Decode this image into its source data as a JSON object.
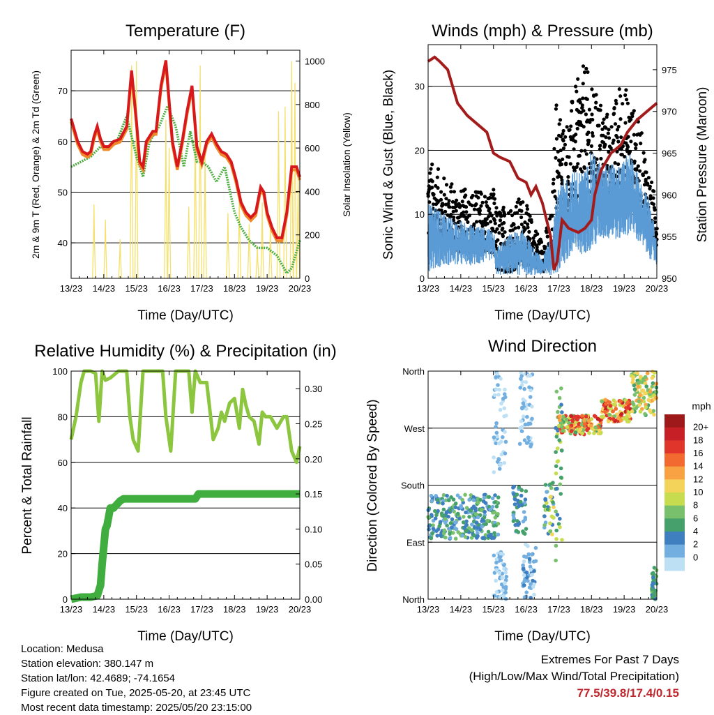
{
  "chart_data": [
    {
      "id": "temperature",
      "type": "line",
      "title": "Temperature (F)",
      "xlabel": "Time (Day/UTC)",
      "ylabel": "2m & 9m T (Red, Orange) & 2m Td (Green)",
      "ylabel_right": "Solar Insolation (Yellow)",
      "x_ticks": [
        "13/23",
        "14/23",
        "15/23",
        "16/23",
        "17/23",
        "18/23",
        "19/23",
        "20/23"
      ],
      "xlim": [
        0,
        7
      ],
      "ylim": [
        33,
        78
      ],
      "y_ticks": [
        40,
        50,
        60,
        70
      ],
      "ylim_right": [
        0,
        1050
      ],
      "y_ticks_right": [
        0,
        200,
        400,
        600,
        800,
        1000
      ],
      "grid": true,
      "colors": {
        "t2m": "#d7191c",
        "t9m": "#f0892b",
        "td": "#4daf3f",
        "solar": "#f4e06b"
      },
      "series": [
        {
          "key": "t2m",
          "x": [
            0,
            0.2,
            0.35,
            0.5,
            0.6,
            0.7,
            0.8,
            0.9,
            1,
            1.15,
            1.3,
            1.5,
            1.7,
            1.85,
            2.0,
            2.1,
            2.2,
            2.3,
            2.5,
            2.6,
            2.75,
            2.9,
            3.05,
            3.1,
            3.25,
            3.4,
            3.55,
            3.7,
            3.85,
            4.0,
            4.15,
            4.3,
            4.45,
            4.6,
            4.75,
            4.9,
            5.05,
            5.2,
            5.35,
            5.5,
            5.65,
            5.8,
            5.9,
            6.0,
            6.15,
            6.3,
            6.45,
            6.6,
            6.75,
            6.9,
            7.0
          ],
          "y": [
            64.5,
            60,
            58,
            57.5,
            58,
            61,
            63,
            60.5,
            59,
            59,
            60,
            60.5,
            63,
            74,
            64,
            56,
            55,
            60,
            62,
            62,
            71,
            76,
            64,
            60,
            55,
            60,
            66,
            71,
            59,
            56,
            60,
            61.5,
            59.5,
            58,
            57.5,
            56,
            52.5,
            48,
            46,
            45,
            46,
            51,
            50,
            46,
            43,
            41,
            41,
            46,
            55,
            55,
            53
          ]
        },
        {
          "key": "td",
          "x": [
            0,
            0.3,
            0.6,
            0.9,
            1.1,
            1.4,
            1.7,
            2.0,
            2.2,
            2.4,
            2.7,
            2.95,
            3.2,
            3.45,
            3.65,
            3.85,
            4.0,
            4.2,
            4.45,
            4.7,
            4.9,
            5.0,
            5.2,
            5.45,
            5.7,
            6.0,
            6.3,
            6.6,
            6.75,
            7.0
          ],
          "y": [
            55,
            56,
            57,
            59,
            58.5,
            60,
            65,
            57,
            53,
            60,
            63,
            67,
            63,
            55,
            62,
            56,
            56,
            55,
            52,
            55,
            49,
            46,
            43,
            40.5,
            39,
            39,
            37.5,
            34,
            35,
            40.5
          ]
        },
        {
          "key": "solar",
          "peaks": [
            [
              0.7,
              340
            ],
            [
              1.05,
              270
            ],
            [
              1.5,
              180
            ],
            [
              1.85,
              980
            ],
            [
              2.0,
              1000
            ],
            [
              2.9,
              730
            ],
            [
              3.0,
              600
            ],
            [
              3.6,
              330
            ],
            [
              3.8,
              760
            ],
            [
              3.95,
              980
            ],
            [
              4.1,
              590
            ],
            [
              4.8,
              300
            ],
            [
              5.15,
              380
            ],
            [
              5.45,
              250
            ],
            [
              5.7,
              150
            ],
            [
              5.85,
              350
            ],
            [
              6.1,
              250
            ],
            [
              6.35,
              770
            ],
            [
              6.55,
              790
            ],
            [
              6.75,
              1000
            ],
            [
              6.85,
              900
            ],
            [
              6.95,
              480
            ]
          ]
        }
      ]
    },
    {
      "id": "winds",
      "type": "scatter",
      "title": "Winds (mph) & Pressure (mb)",
      "xlabel": "Time (Day/UTC)",
      "ylabel": "Sonic Wind & Gust (Blue, Black)",
      "ylabel_right": "Station Pressure (Maroon)",
      "x_ticks": [
        "13/23",
        "14/23",
        "15/23",
        "16/23",
        "17/23",
        "18/23",
        "19/23",
        "20/23"
      ],
      "xlim": [
        0,
        7
      ],
      "ylim": [
        0,
        36.5
      ],
      "y_ticks": [
        0,
        10,
        20,
        30
      ],
      "ylim_right": [
        950,
        978
      ],
      "y_ticks_right": [
        950,
        955,
        960,
        965,
        970,
        975
      ],
      "grid": true,
      "colors": {
        "wind": "#5b9bd5",
        "gust": "#000000",
        "pressure": "#a31b1b"
      },
      "wind_env": {
        "x": [
          0,
          0.5,
          1.0,
          1.5,
          2.0,
          2.1,
          2.5,
          2.9,
          3.2,
          3.5,
          3.8,
          3.9,
          4.2,
          4.5,
          4.8,
          5.0,
          5.3,
          5.6,
          5.9,
          6.2,
          6.5,
          6.8,
          7.0
        ],
        "lo": [
          1,
          2,
          2,
          2,
          3,
          0.5,
          0.5,
          0.5,
          0.5,
          0.5,
          0.5,
          0.5,
          2,
          3,
          4,
          4,
          6,
          6,
          6,
          7,
          5,
          3,
          2
        ],
        "hi": [
          12,
          10,
          9,
          8,
          8,
          5,
          7,
          8,
          5,
          3,
          8,
          13,
          16,
          17,
          17,
          20,
          18,
          18,
          18,
          20,
          15,
          12,
          6
        ]
      },
      "gust_env": {
        "x": [
          0,
          0.5,
          1.0,
          1.5,
          2.0,
          2.1,
          2.5,
          2.9,
          3.2,
          3.5,
          3.8,
          3.9,
          4.2,
          4.5,
          4.8,
          5.0,
          5.3,
          5.6,
          5.9,
          6.2,
          6.5,
          6.8,
          7.0
        ],
        "lo": [
          6,
          5,
          4,
          4,
          4,
          1,
          1,
          2,
          2,
          1,
          2,
          8,
          10,
          12,
          12,
          14,
          14,
          12,
          12,
          14,
          10,
          6,
          5
        ],
        "hi": [
          19,
          16,
          14,
          14,
          14,
          11,
          12,
          13,
          9,
          6,
          11,
          29,
          24,
          30,
          34,
          30,
          28,
          25,
          32,
          28,
          24,
          16,
          12
        ]
      },
      "pressure": {
        "x": [
          0,
          0.2,
          0.35,
          0.6,
          0.9,
          1.2,
          1.5,
          1.8,
          2.0,
          2.2,
          2.5,
          2.75,
          3.0,
          3.15,
          3.3,
          3.5,
          3.75,
          3.85,
          3.95,
          4.1,
          4.3,
          4.6,
          4.8,
          5.0,
          5.1,
          5.3,
          5.6,
          5.9,
          6.1,
          6.4,
          6.7,
          7.0
        ],
        "y": [
          976,
          976.5,
          976,
          975,
          971,
          969.5,
          968.5,
          967.5,
          965,
          964.5,
          964,
          962,
          961.5,
          960,
          961,
          959,
          955,
          951,
          952,
          957,
          956,
          955.5,
          956,
          957,
          960,
          963,
          965,
          966,
          967.5,
          969,
          970,
          971
        ]
      }
    },
    {
      "id": "rh_precip",
      "type": "line",
      "title": "Relative Humidity (%) & Precipitation (in)",
      "xlabel": "Time (Day/UTC)",
      "ylabel": "Percent & Total Rainfall",
      "x_ticks": [
        "13/23",
        "14/23",
        "15/23",
        "16/23",
        "17/23",
        "18/23",
        "19/23",
        "20/23"
      ],
      "xlim": [
        0,
        7
      ],
      "ylim": [
        0,
        100
      ],
      "y_ticks": [
        0,
        20,
        40,
        60,
        80,
        100
      ],
      "ylim_right": [
        0,
        0.325
      ],
      "y_ticks_right": [
        "0.00",
        "0.05",
        "0.10",
        "0.15",
        "0.20",
        "0.25",
        "0.30"
      ],
      "grid": true,
      "colors": {
        "rh": "#8cc63f",
        "precip": "#3fae3f"
      },
      "series": [
        {
          "key": "rh",
          "x": [
            0,
            0.15,
            0.3,
            0.4,
            0.5,
            0.6,
            0.75,
            0.85,
            0.95,
            1.05,
            1.2,
            1.45,
            1.7,
            1.8,
            1.9,
            2.05,
            2.2,
            2.55,
            2.7,
            2.8,
            2.9,
            3.05,
            3.2,
            3.5,
            3.6,
            3.7,
            3.8,
            3.95,
            4.15,
            4.35,
            4.5,
            4.6,
            4.7,
            4.85,
            5.0,
            5.15,
            5.25,
            5.35,
            5.45,
            5.6,
            5.75,
            5.85,
            5.95,
            6.1,
            6.3,
            6.5,
            6.6,
            6.75,
            6.9,
            7.0
          ],
          "y": [
            70,
            80,
            95,
            100,
            100,
            100,
            99,
            78,
            100,
            96,
            97,
            100,
            100,
            80,
            70,
            65,
            100,
            100,
            100,
            100,
            80,
            65,
            100,
            100,
            100,
            82,
            100,
            95,
            95,
            70,
            75,
            82,
            78,
            86,
            88,
            75,
            92,
            85,
            80,
            78,
            68,
            82,
            80,
            80,
            75,
            80,
            80,
            65,
            60,
            67
          ]
        },
        {
          "key": "precip",
          "x": [
            0,
            0.3,
            0.6,
            0.8,
            0.9,
            0.95,
            1.05,
            1.1,
            1.2,
            1.3,
            1.5,
            1.6,
            1.7,
            2.0,
            2.5,
            3.0,
            3.5,
            3.8,
            3.9,
            4.2,
            4.5,
            5.0,
            5.5,
            6.0,
            6.5,
            7.0
          ],
          "y": [
            0.0,
            0.003,
            0.003,
            0.005,
            0.02,
            0.05,
            0.1,
            0.105,
            0.13,
            0.13,
            0.14,
            0.143,
            0.143,
            0.143,
            0.143,
            0.143,
            0.143,
            0.143,
            0.15,
            0.15,
            0.15,
            0.15,
            0.15,
            0.15,
            0.15,
            0.15
          ]
        }
      ]
    },
    {
      "id": "wind_direction",
      "type": "scatter",
      "title": "Wind Direction",
      "xlabel": "Time (Day/UTC)",
      "ylabel": "Direction (Colored By Speed)",
      "x_ticks": [
        "13/23",
        "14/23",
        "15/23",
        "16/23",
        "17/23",
        "18/23",
        "19/23",
        "20/23"
      ],
      "xlim": [
        0,
        7
      ],
      "ylim": [
        0,
        360
      ],
      "y_ticks": [
        {
          "v": 0,
          "label": "North"
        },
        {
          "v": 90,
          "label": "East"
        },
        {
          "v": 180,
          "label": "South"
        },
        {
          "v": 270,
          "label": "West"
        },
        {
          "v": 360,
          "label": "North"
        }
      ],
      "grid": true,
      "clusters": [
        {
          "x": [
            0,
            2.15
          ],
          "y": [
            95,
            165
          ],
          "speed": [
            2,
            8
          ]
        },
        {
          "x": [
            2.0,
            2.4
          ],
          "y": [
            200,
            360
          ],
          "speed": [
            0,
            2
          ]
        },
        {
          "x": [
            2.0,
            2.4
          ],
          "y": [
            0,
            80
          ],
          "speed": [
            0,
            2
          ]
        },
        {
          "x": [
            2.6,
            3.0
          ],
          "y": [
            100,
            180
          ],
          "speed": [
            2,
            6
          ]
        },
        {
          "x": [
            2.8,
            3.2
          ],
          "y": [
            240,
            360
          ],
          "speed": [
            0,
            2
          ]
        },
        {
          "x": [
            2.9,
            3.3
          ],
          "y": [
            0,
            90
          ],
          "speed": [
            0,
            4
          ]
        },
        {
          "x": [
            3.55,
            3.85
          ],
          "y": [
            100,
            190
          ],
          "speed": [
            2,
            12
          ]
        },
        {
          "x": [
            3.9,
            4.1
          ],
          "y": [
            60,
            350
          ],
          "speed": [
            4,
            10
          ]
        },
        {
          "x": [
            4.0,
            5.3
          ],
          "y": [
            260,
            290
          ],
          "speed": [
            6,
            20
          ]
        },
        {
          "x": [
            5.3,
            6.2
          ],
          "y": [
            280,
            315
          ],
          "speed": [
            8,
            20
          ]
        },
        {
          "x": [
            6.2,
            7.0
          ],
          "y": [
            290,
            360
          ],
          "speed": [
            6,
            14
          ]
        },
        {
          "x": [
            6.85,
            7.0
          ],
          "y": [
            0,
            55
          ],
          "speed": [
            4,
            8
          ]
        }
      ],
      "colorbar": {
        "title": "mph",
        "labels": [
          "20+",
          "18",
          "16",
          "14",
          "12",
          "10",
          "8",
          "6",
          "4",
          "2",
          "0"
        ],
        "colors": [
          "#9e1a1a",
          "#c62026",
          "#e0352b",
          "#f26a30",
          "#f9a243",
          "#f4d35a",
          "#c7dd4f",
          "#79c06d",
          "#45a06c",
          "#3f7fc0",
          "#72afe0",
          "#bde0f5"
        ]
      }
    }
  ],
  "info": {
    "location": "Location: Medusa",
    "elevation": "Station elevation: 380.147 m",
    "latlon": "Station lat/lon: 42.4689; -74.1654",
    "created": "Figure created on Tue, 2025-05-20, at 23:45 UTC",
    "recent": "Most recent data timestamp: 2025/05/20 23:15:00"
  },
  "extremes": {
    "title": "Extremes For Past 7 Days",
    "subtitle": "(High/Low/Max Wind/Total Precipitation)",
    "values": "77.5/39.8/17.4/0.15"
  }
}
